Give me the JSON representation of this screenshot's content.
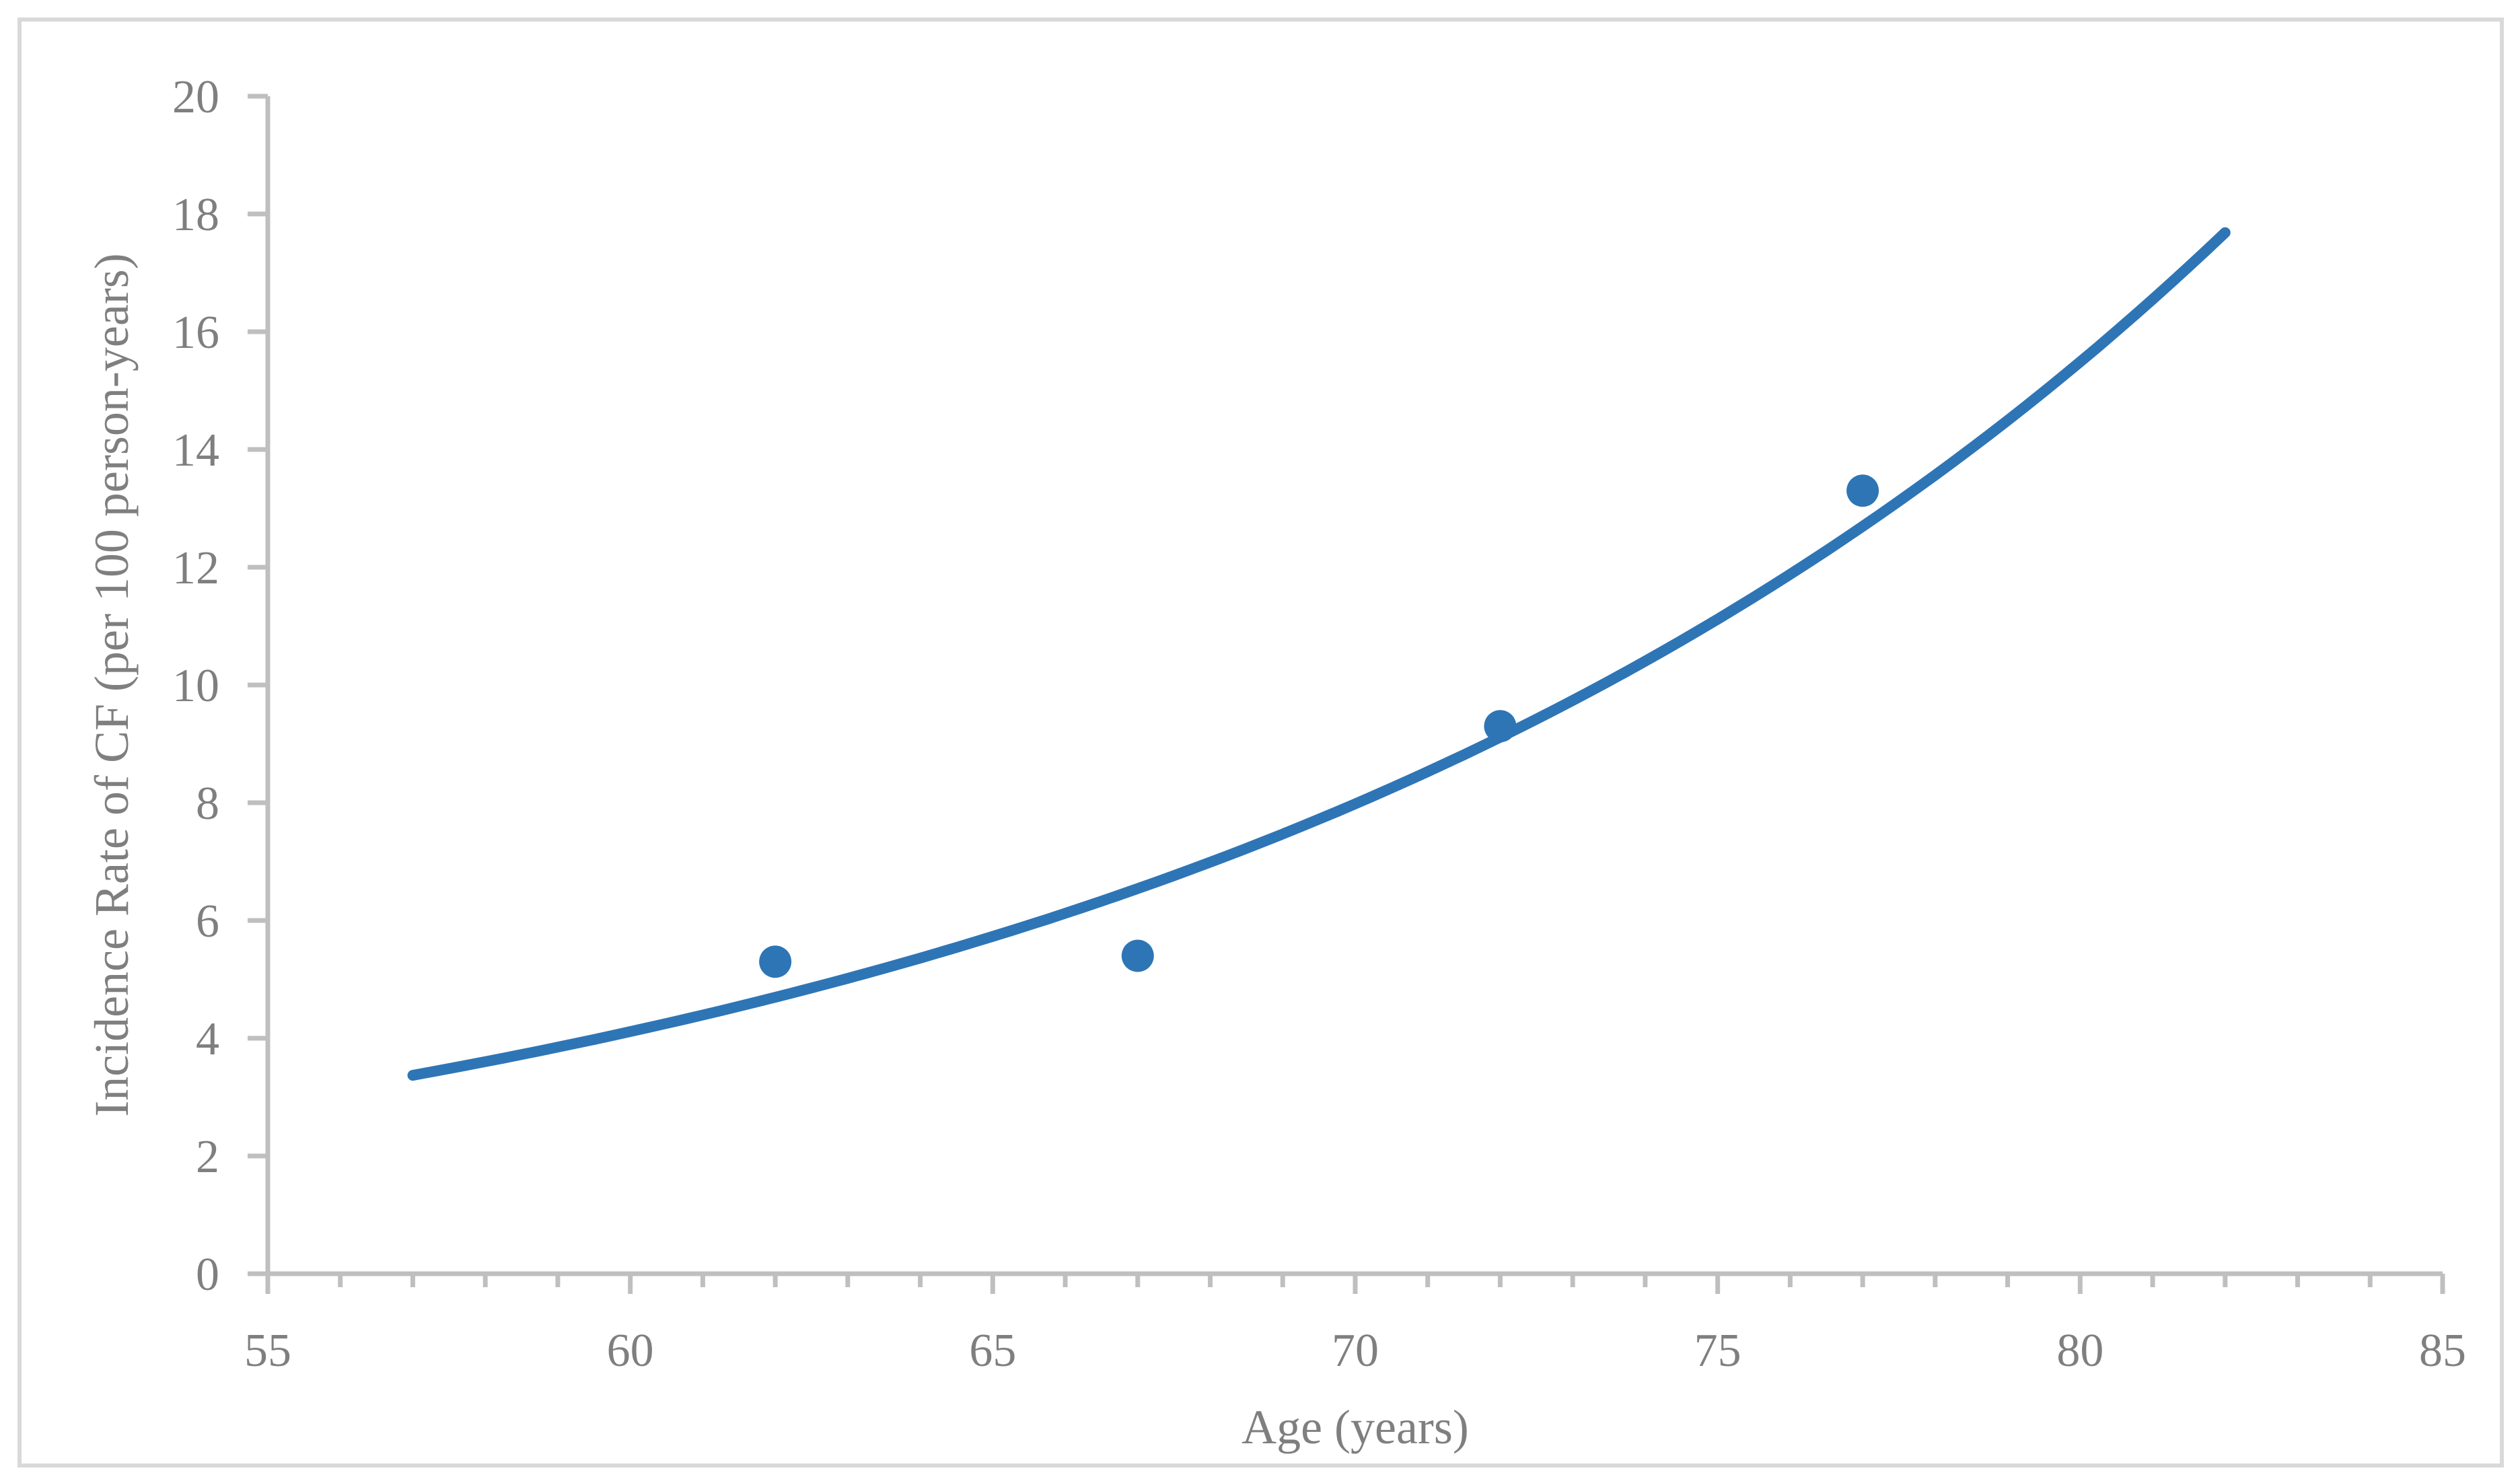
{
  "figure": {
    "background_color": "#FFFFFF",
    "border_color": "#D9D9D9"
  },
  "chart_data": {
    "type": "scatter",
    "title": "",
    "xlabel": "Age (years)",
    "ylabel": "Incidence Rate of CF (per 100 person-years)",
    "xlim": [
      55,
      85
    ],
    "ylim": [
      0,
      20
    ],
    "x_major_ticks": [
      55,
      60,
      65,
      70,
      75,
      80,
      85
    ],
    "x_minor_tick_interval": 1,
    "y_ticks": [
      0,
      2,
      4,
      6,
      8,
      10,
      12,
      14,
      16,
      18,
      20
    ],
    "grid": false,
    "legend": "none",
    "axis_color": "#BFBFBF",
    "tick_label_color": "#7F7F7F",
    "series": [
      {
        "name": "observed-incidence-rates",
        "type": "scatter",
        "color": "#2E75B6",
        "points": [
          {
            "x": 62,
            "y": 5.3
          },
          {
            "x": 67,
            "y": 5.4
          },
          {
            "x": 72,
            "y": 9.3
          },
          {
            "x": 77,
            "y": 13.3
          }
        ]
      },
      {
        "name": "exponential-trendline",
        "type": "line",
        "color": "#2E75B6",
        "x_start": 57,
        "x_end": 82,
        "y_start": 3.4,
        "y_end": 17.7,
        "model": "exponential",
        "coef_a": 0.077,
        "coef_b": 0.0663
      }
    ]
  }
}
